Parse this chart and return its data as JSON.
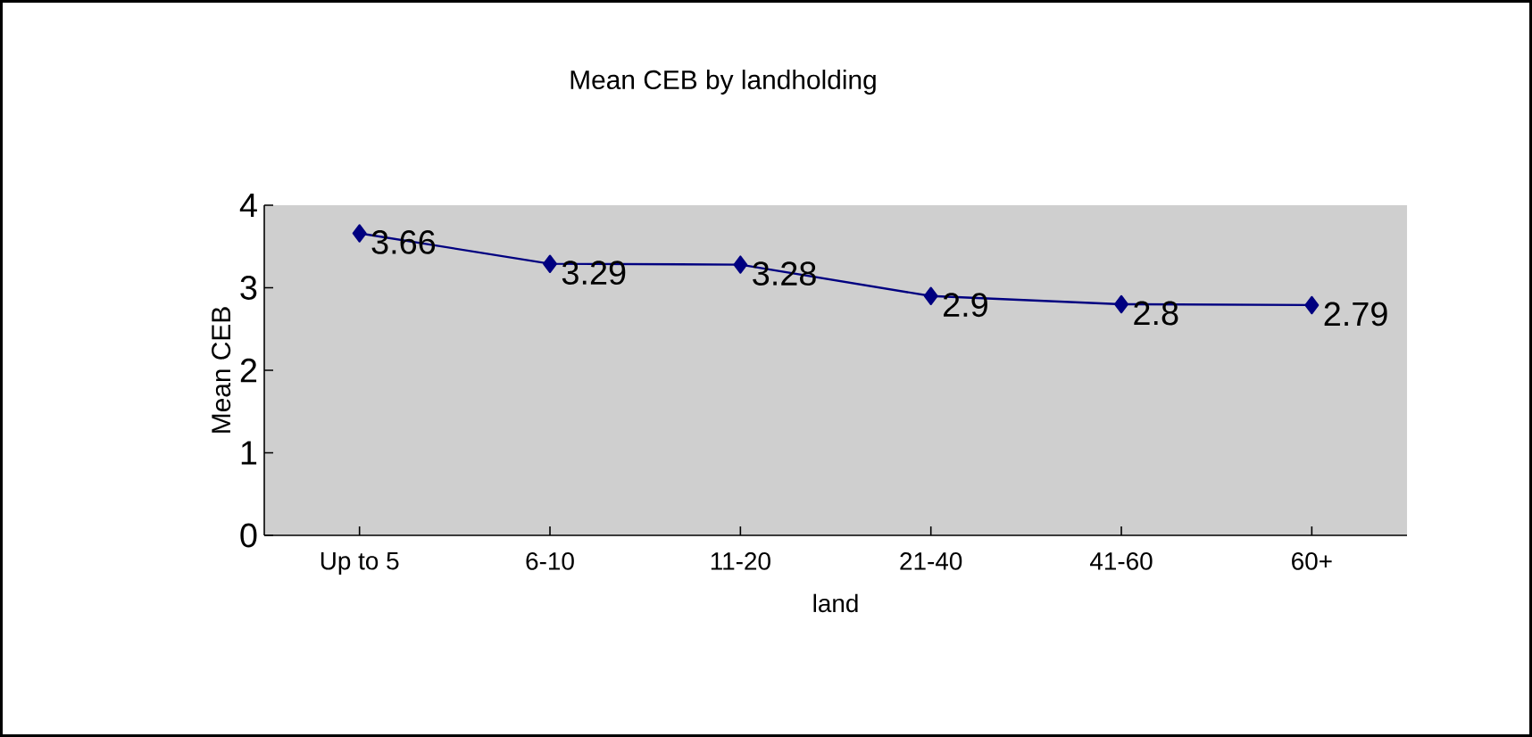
{
  "chart_data": {
    "type": "line",
    "title": "Mean CEB by landholding",
    "xlabel": "land",
    "ylabel": "Mean CEB",
    "categories": [
      "Up to 5",
      "6-10",
      "11-20",
      "21-40",
      "41-60",
      "60+"
    ],
    "values": [
      3.66,
      3.29,
      3.28,
      2.9,
      2.8,
      2.79
    ],
    "color": "#000080",
    "marker": "diamond",
    "line_style": "solid",
    "data_labels": true,
    "ylim": [
      0,
      4
    ],
    "yticks": [
      0,
      1,
      2,
      3,
      4
    ]
  }
}
